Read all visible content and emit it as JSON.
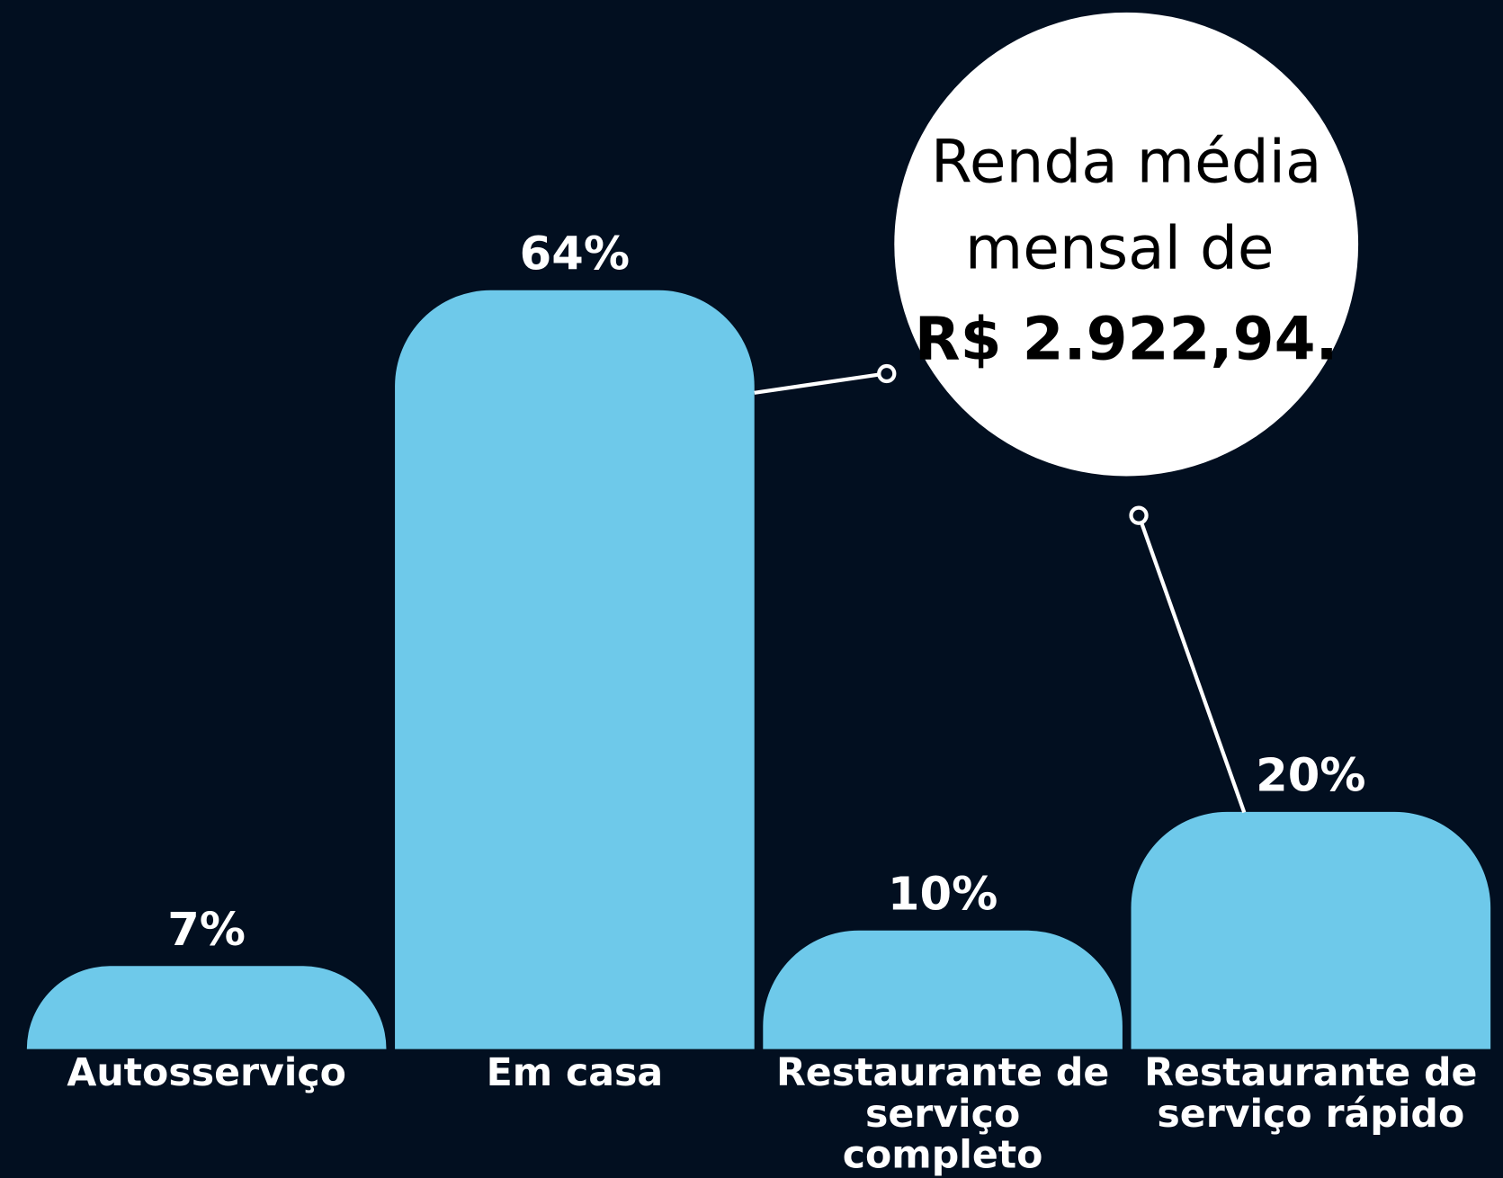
{
  "chart_data": {
    "type": "bar",
    "categories": [
      "Autosserviço",
      "Em casa",
      "Restaurante de serviço completo",
      "Restaurante de serviço rápido"
    ],
    "values": [
      7,
      64,
      10,
      20
    ],
    "value_labels": [
      "7%",
      "64%",
      "10%",
      "20%"
    ],
    "color": "#6ec9ea",
    "annotation": [
      "Renda média",
      "mensal de",
      "R$ 2.922,94."
    ]
  }
}
